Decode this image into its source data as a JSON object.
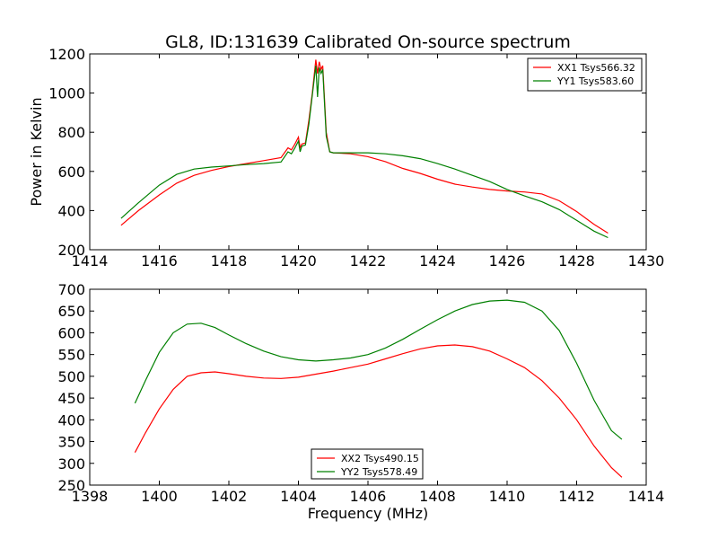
{
  "figure": {
    "title": "GL8, ID:131639 Calibrated On-source spectrum"
  },
  "chart_data": [
    {
      "type": "line",
      "ylabel": "Power in Kelvin",
      "xlabel": "",
      "xlim": [
        1414,
        1430
      ],
      "ylim": [
        200,
        1200
      ],
      "xticks": [
        "1414",
        "1416",
        "1418",
        "1420",
        "1422",
        "1424",
        "1426",
        "1428",
        "1430"
      ],
      "yticks": [
        "200",
        "400",
        "600",
        "800",
        "1000",
        "1200"
      ],
      "legend": "top-right",
      "series": [
        {
          "name": "XX1 Tsys566.32",
          "color": "#ff0000",
          "x": [
            1414.9,
            1415.4,
            1416.0,
            1416.5,
            1417.0,
            1417.5,
            1418.0,
            1418.5,
            1419.0,
            1419.5,
            1419.7,
            1419.8,
            1419.9,
            1420.0,
            1420.05,
            1420.1,
            1420.2,
            1420.3,
            1420.4,
            1420.5,
            1420.55,
            1420.6,
            1420.65,
            1420.7,
            1420.8,
            1420.9,
            1421.0,
            1421.5,
            1422.0,
            1422.5,
            1423.0,
            1423.5,
            1424.0,
            1424.5,
            1425.0,
            1425.5,
            1426.0,
            1426.5,
            1427.0,
            1427.5,
            1428.0,
            1428.5,
            1428.9
          ],
          "y": [
            325,
            400,
            480,
            540,
            580,
            605,
            625,
            640,
            655,
            670,
            720,
            710,
            740,
            775,
            720,
            740,
            745,
            860,
            1000,
            1170,
            1100,
            1160,
            1120,
            1140,
            800,
            700,
            695,
            690,
            675,
            650,
            615,
            590,
            560,
            535,
            520,
            508,
            500,
            495,
            485,
            450,
            395,
            330,
            285
          ]
        },
        {
          "name": "YY1 Tsys583.60",
          "color": "#008000",
          "x": [
            1414.9,
            1415.4,
            1416.0,
            1416.5,
            1417.0,
            1417.5,
            1418.0,
            1418.5,
            1419.0,
            1419.5,
            1419.7,
            1419.8,
            1419.9,
            1420.0,
            1420.05,
            1420.1,
            1420.2,
            1420.3,
            1420.4,
            1420.5,
            1420.55,
            1420.6,
            1420.65,
            1420.7,
            1420.8,
            1420.9,
            1421.0,
            1421.5,
            1422.0,
            1422.5,
            1423.0,
            1423.5,
            1424.0,
            1424.5,
            1425.0,
            1425.5,
            1426.0,
            1426.5,
            1427.0,
            1427.5,
            1428.0,
            1428.5,
            1428.9
          ],
          "y": [
            360,
            440,
            530,
            585,
            612,
            622,
            628,
            635,
            640,
            648,
            700,
            690,
            720,
            755,
            700,
            730,
            735,
            840,
            990,
            1140,
            980,
            1130,
            1100,
            1120,
            780,
            700,
            695,
            695,
            695,
            690,
            680,
            665,
            640,
            612,
            580,
            548,
            508,
            475,
            445,
            405,
            350,
            295,
            262
          ]
        }
      ]
    },
    {
      "type": "line",
      "ylabel": "",
      "xlabel": "Frequency (MHz)",
      "xlim": [
        1398,
        1414
      ],
      "ylim": [
        250,
        700
      ],
      "xticks": [
        "1398",
        "1400",
        "1402",
        "1404",
        "1406",
        "1408",
        "1410",
        "1412",
        "1414"
      ],
      "yticks": [
        "250",
        "300",
        "350",
        "400",
        "450",
        "500",
        "550",
        "600",
        "650",
        "700"
      ],
      "legend": "bottom-center",
      "series": [
        {
          "name": "XX2 Tsys490.15",
          "color": "#ff0000",
          "x": [
            1399.3,
            1399.6,
            1400.0,
            1400.4,
            1400.8,
            1401.2,
            1401.6,
            1402.0,
            1402.5,
            1403.0,
            1403.5,
            1404.0,
            1404.5,
            1405.0,
            1405.5,
            1406.0,
            1406.5,
            1407.0,
            1407.5,
            1408.0,
            1408.5,
            1409.0,
            1409.5,
            1410.0,
            1410.5,
            1411.0,
            1411.5,
            1412.0,
            1412.5,
            1413.0,
            1413.3
          ],
          "y": [
            325,
            370,
            425,
            470,
            500,
            508,
            510,
            506,
            500,
            496,
            495,
            498,
            505,
            512,
            520,
            528,
            540,
            552,
            563,
            570,
            572,
            568,
            558,
            540,
            520,
            490,
            450,
            400,
            340,
            290,
            268
          ]
        },
        {
          "name": "YY2 Tsys578.49",
          "color": "#008000",
          "x": [
            1399.3,
            1399.6,
            1400.0,
            1400.4,
            1400.8,
            1401.2,
            1401.6,
            1402.0,
            1402.5,
            1403.0,
            1403.5,
            1404.0,
            1404.5,
            1405.0,
            1405.5,
            1406.0,
            1406.5,
            1407.0,
            1407.5,
            1408.0,
            1408.5,
            1409.0,
            1409.5,
            1410.0,
            1410.5,
            1411.0,
            1411.5,
            1412.0,
            1412.5,
            1413.0,
            1413.3
          ],
          "y": [
            438,
            490,
            555,
            600,
            620,
            622,
            612,
            595,
            575,
            558,
            545,
            538,
            535,
            538,
            542,
            550,
            565,
            585,
            608,
            630,
            650,
            665,
            673,
            675,
            670,
            650,
            605,
            530,
            445,
            375,
            355
          ]
        }
      ]
    }
  ]
}
